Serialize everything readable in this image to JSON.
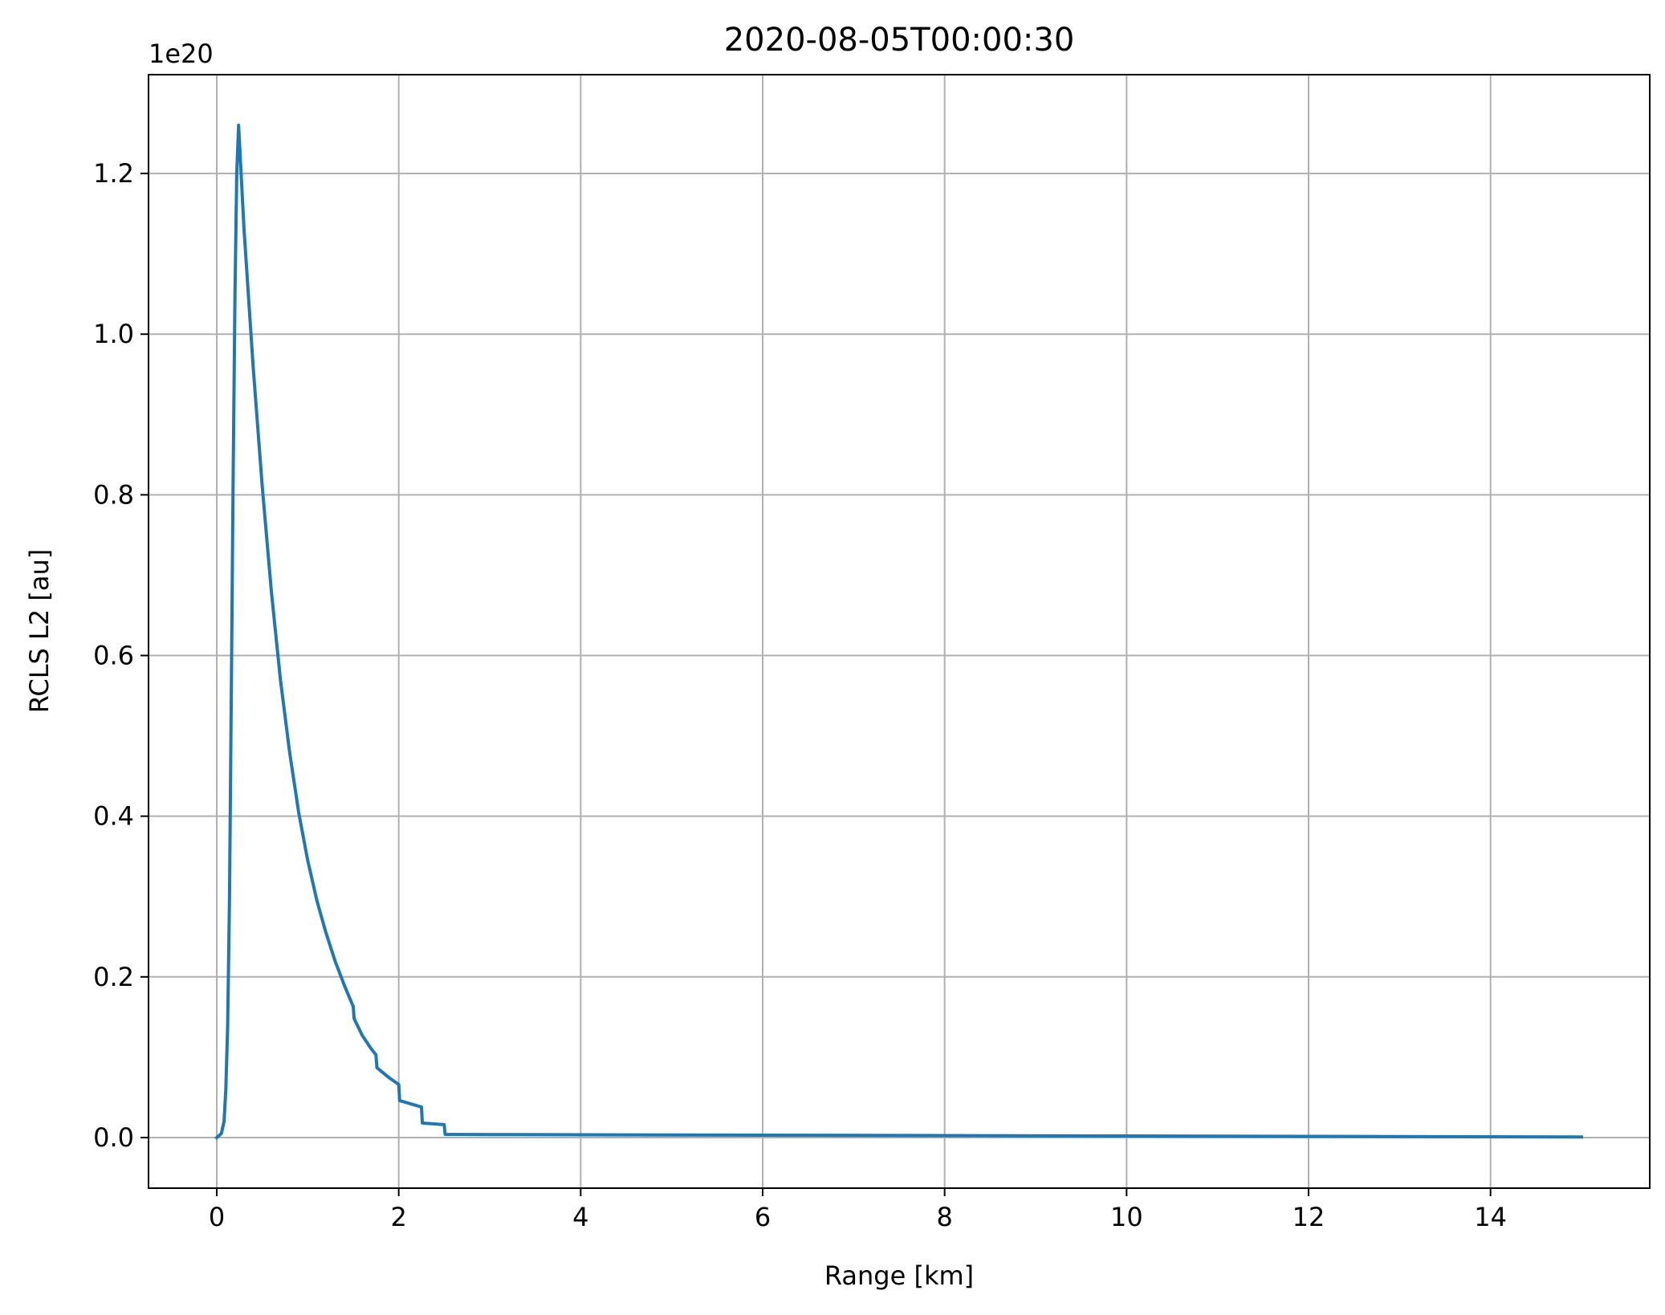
{
  "chart_data": {
    "type": "line",
    "title": "2020-08-05T00:00:30",
    "xlabel": "Range [km]",
    "ylabel": "RCLS L2 [au]",
    "y_offset_label": "1e20",
    "xlim": [
      -0.75,
      15.75
    ],
    "ylim": [
      -0.063,
      1.323
    ],
    "x_ticks": [
      0,
      2,
      4,
      6,
      8,
      10,
      12,
      14
    ],
    "x_tick_labels": [
      "0",
      "2",
      "4",
      "6",
      "8",
      "10",
      "12",
      "14"
    ],
    "y_ticks": [
      0.0,
      0.2,
      0.4,
      0.6,
      0.8,
      1.0,
      1.2
    ],
    "y_tick_labels": [
      "0.0",
      "0.2",
      "0.4",
      "0.6",
      "0.8",
      "1.0",
      "1.2"
    ],
    "grid": true,
    "line_color": "#1f77b4",
    "series": [
      {
        "x": [
          0.0,
          0.05,
          0.08,
          0.1,
          0.12,
          0.14,
          0.16,
          0.18,
          0.2,
          0.22,
          0.24,
          0.3,
          0.4,
          0.5,
          0.6,
          0.7,
          0.8,
          0.9,
          1.0,
          1.1,
          1.2,
          1.3,
          1.4,
          1.5,
          1.51,
          1.6,
          1.7,
          1.75,
          1.76,
          1.9,
          2.0,
          2.01,
          2.25,
          2.26,
          2.5,
          2.51,
          3.0,
          4.0,
          6.0,
          8.0,
          10.0,
          12.0,
          14.0,
          15.0
        ],
        "y": [
          0.0,
          0.005,
          0.02,
          0.06,
          0.14,
          0.3,
          0.55,
          0.82,
          1.05,
          1.2,
          1.26,
          1.13,
          0.96,
          0.81,
          0.68,
          0.57,
          0.48,
          0.405,
          0.345,
          0.295,
          0.255,
          0.22,
          0.19,
          0.163,
          0.148,
          0.127,
          0.11,
          0.103,
          0.087,
          0.074,
          0.066,
          0.046,
          0.038,
          0.018,
          0.016,
          0.004,
          0.0038,
          0.0035,
          0.003,
          0.0025,
          0.002,
          0.0015,
          0.001,
          0.0008
        ]
      }
    ]
  }
}
